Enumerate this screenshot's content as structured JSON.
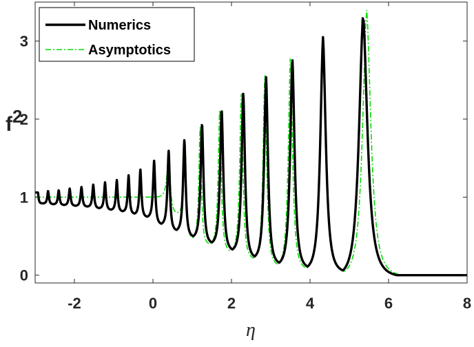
{
  "chart_data": {
    "type": "line",
    "title": "",
    "xlabel": "η",
    "ylabel": "f",
    "ylabel_superscript": "2",
    "xlim": [
      -3,
      8
    ],
    "ylim": [
      -0.1,
      3.5
    ],
    "xticks": [
      -2,
      0,
      2,
      4,
      6,
      8
    ],
    "yticks": [
      0,
      1,
      2,
      3
    ],
    "xtick_labels": [
      "-2",
      "0",
      "2",
      "4",
      "6",
      "8"
    ],
    "ytick_labels": [
      "0",
      "1",
      "2",
      "3"
    ],
    "grid": false,
    "legend_position": "top-left",
    "peaks": [
      {
        "x": -2.93,
        "y": 1.06
      },
      {
        "x": -2.67,
        "y": 1.08
      },
      {
        "x": -2.4,
        "y": 1.09
      },
      {
        "x": -2.12,
        "y": 1.11
      },
      {
        "x": -1.82,
        "y": 1.13
      },
      {
        "x": -1.52,
        "y": 1.16
      },
      {
        "x": -1.22,
        "y": 1.19
      },
      {
        "x": -0.92,
        "y": 1.22
      },
      {
        "x": -0.62,
        "y": 1.28
      },
      {
        "x": -0.32,
        "y": 1.36
      },
      {
        "x": 0.03,
        "y": 1.47
      },
      {
        "x": 0.4,
        "y": 1.6
      },
      {
        "x": 0.8,
        "y": 1.74
      },
      {
        "x": 1.25,
        "y": 1.95
      },
      {
        "x": 1.75,
        "y": 2.13
      },
      {
        "x": 2.3,
        "y": 2.34
      },
      {
        "x": 2.88,
        "y": 2.55
      },
      {
        "x": 3.55,
        "y": 2.78
      },
      {
        "x": 4.33,
        "y": 3.05
      },
      {
        "x": 5.35,
        "y": 3.35
      }
    ],
    "troughs_y": [
      0.92,
      0.91,
      0.9,
      0.89,
      0.88,
      0.86,
      0.84,
      0.82,
      0.79,
      0.75,
      0.66,
      0.58,
      0.5,
      0.42,
      0.33,
      0.24,
      0.16,
      0.11,
      0.06
    ],
    "series": [
      {
        "name": "Numerics",
        "color": "#000000",
        "style": "solid",
        "peaks_x": [
          -2.93,
          -2.67,
          -2.4,
          -2.12,
          -1.82,
          -1.52,
          -1.22,
          -0.92,
          -0.62,
          -0.32,
          0.03,
          0.4,
          0.8,
          1.25,
          1.75,
          2.3,
          2.88,
          3.55,
          4.33,
          5.35
        ],
        "peaks_y": [
          1.06,
          1.08,
          1.09,
          1.11,
          1.13,
          1.16,
          1.19,
          1.22,
          1.28,
          1.36,
          1.47,
          1.6,
          1.74,
          1.95,
          2.13,
          2.34,
          2.55,
          2.78,
          3.05,
          3.35
        ],
        "troughs_y": [
          0.92,
          0.91,
          0.9,
          0.89,
          0.88,
          0.86,
          0.84,
          0.82,
          0.79,
          0.75,
          0.66,
          0.58,
          0.5,
          0.42,
          0.33,
          0.24,
          0.16,
          0.11,
          0.06
        ],
        "tail_y": 0.0
      },
      {
        "name": "Asymptotics",
        "color": "#00dd00",
        "style": "dash-dot",
        "flat_y": 1.0,
        "flat_until_x": 0.05,
        "peaks_x": [
          0.4,
          0.82,
          1.2,
          1.7,
          2.25,
          2.85,
          3.5,
          4.33,
          5.44
        ],
        "peaks_y": [
          1.55,
          1.7,
          1.9,
          2.15,
          2.35,
          2.58,
          2.82,
          3.1,
          3.42
        ],
        "troughs_y": [
          0.8,
          0.48,
          0.4,
          0.31,
          0.22,
          0.14,
          0.09,
          0.05
        ],
        "tail_y": 0.0
      }
    ]
  }
}
